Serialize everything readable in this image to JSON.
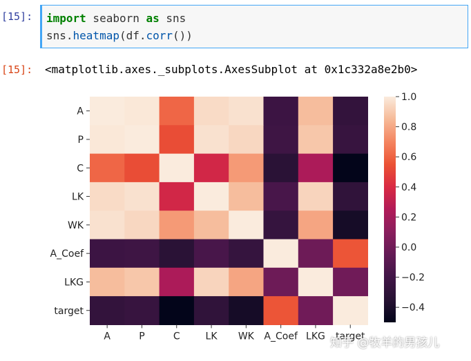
{
  "cell": {
    "in_prompt": "[15]:",
    "out_prompt": "[15]:",
    "code": {
      "kw_import": "import",
      "module": " seaborn ",
      "kw_as": "as",
      "alias": " sns",
      "line2_prefix": "sns.",
      "line2_fn": "heatmap",
      "line2_mid": "(df.",
      "line2_fn2": "corr",
      "line2_suffix": "())"
    },
    "output_text": "<matplotlib.axes._subplots.AxesSubplot at 0x1c332a8e2b0>"
  },
  "colors": {
    "input_border": "#42a5f5",
    "input_bg": "#f7f7f7",
    "keyword": "#008000",
    "function": "#0055aa",
    "in_prompt": "#303f9f",
    "out_prompt": "#d84315"
  },
  "chart_data": {
    "type": "heatmap",
    "colormap": "rocket",
    "rows": [
      "A",
      "P",
      "C",
      "LK",
      "WK",
      "A_Coef",
      "LKG",
      "target"
    ],
    "columns": [
      "A",
      "P",
      "C",
      "LK",
      "WK",
      "A_Coef",
      "LKG",
      "target"
    ],
    "values": [
      [
        1.0,
        0.99,
        0.61,
        0.95,
        0.97,
        -0.23,
        0.86,
        -0.28
      ],
      [
        0.99,
        1.0,
        0.53,
        0.97,
        0.94,
        -0.22,
        0.89,
        -0.26
      ],
      [
        0.61,
        0.53,
        1.0,
        0.37,
        0.76,
        -0.33,
        0.23,
        -0.53
      ],
      [
        0.95,
        0.97,
        0.37,
        1.0,
        0.86,
        -0.17,
        0.93,
        -0.3
      ],
      [
        0.97,
        0.94,
        0.76,
        0.86,
        1.0,
        -0.27,
        0.79,
        -0.42
      ],
      [
        -0.23,
        -0.22,
        -0.33,
        -0.17,
        -0.27,
        1.0,
        -0.01,
        0.56
      ],
      [
        0.86,
        0.89,
        0.23,
        0.93,
        0.79,
        -0.01,
        1.0,
        0.0
      ],
      [
        -0.28,
        -0.26,
        -0.53,
        -0.3,
        -0.42,
        0.56,
        0.0,
        1.0
      ]
    ],
    "vmin": -0.5,
    "vmax": 1.0,
    "colorbar_ticks": [
      "1.0",
      "0.8",
      "0.6",
      "0.4",
      "0.2",
      "0.0",
      "−0.2",
      "−0.4"
    ],
    "colorbar_tick_values": [
      1.0,
      0.8,
      0.6,
      0.4,
      0.2,
      0.0,
      -0.2,
      -0.4
    ],
    "colorbar_position": "right"
  },
  "watermark": "知乎 @牧羊的男孩儿"
}
